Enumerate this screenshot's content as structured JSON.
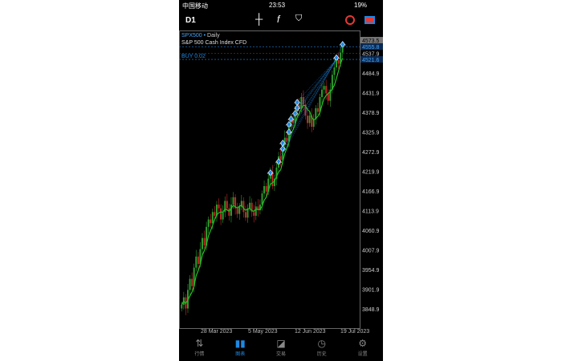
{
  "status": {
    "carrier": "中国移动",
    "time": "23:53",
    "battery": "19%"
  },
  "toolbar": {
    "timeframe": "D1"
  },
  "chart_info": {
    "symbol": "SPX500",
    "period": "Daily",
    "description": "S&P 500 Cash Index CFD",
    "order": "BUY 0.02"
  },
  "price_axis": [
    "4573.5",
    "4555.8",
    "4537.9",
    "4521.6",
    "4484.9",
    "4431.9",
    "4378.9",
    "4325.9",
    "4272.9",
    "4219.9",
    "4166.9",
    "4113.9",
    "4060.9",
    "4007.9",
    "3954.9",
    "3901.9",
    "3848.9"
  ],
  "date_axis": [
    "28 Mar 2023",
    "5 May 2023",
    "12 Jun 2023",
    "19 Jul 2023"
  ],
  "chart_data": {
    "type": "candlestick",
    "closes": [
      3860,
      3880,
      3850,
      3900,
      3930,
      3910,
      3960,
      3990,
      3970,
      4010,
      4040,
      4020,
      4070,
      4090,
      4080,
      4110,
      4100,
      4130,
      4120,
      4090,
      4110,
      4140,
      4120,
      4100,
      4130,
      4150,
      4120,
      4105,
      4125,
      4140,
      4110,
      4095,
      4120,
      4135,
      4110,
      4100,
      4125,
      4115,
      4130,
      4160,
      4180,
      4165,
      4200,
      4220,
      4180,
      4200,
      4230,
      4260,
      4250,
      4290,
      4310,
      4300,
      4340,
      4360,
      4350,
      4380,
      4400,
      4390,
      4420,
      4400,
      4370,
      4350,
      4370,
      4340,
      4360,
      4390,
      4380,
      4420,
      4440,
      4450,
      4430,
      4410,
      4440,
      4480,
      4500,
      4520,
      4510,
      4540,
      4556
    ],
    "buy_markers": [
      4210,
      4240,
      4275,
      4290,
      4320,
      4340,
      4355,
      4370,
      4385,
      4400,
      4520,
      4556
    ],
    "colors": {
      "up": "#2e9e2e",
      "down": "#c62828",
      "ma": "#22c022",
      "buy": "#1e88e5"
    }
  },
  "tabs": [
    {
      "label": "行情"
    },
    {
      "label": "图表"
    },
    {
      "label": "交易"
    },
    {
      "label": "历史"
    },
    {
      "label": "设置"
    }
  ]
}
